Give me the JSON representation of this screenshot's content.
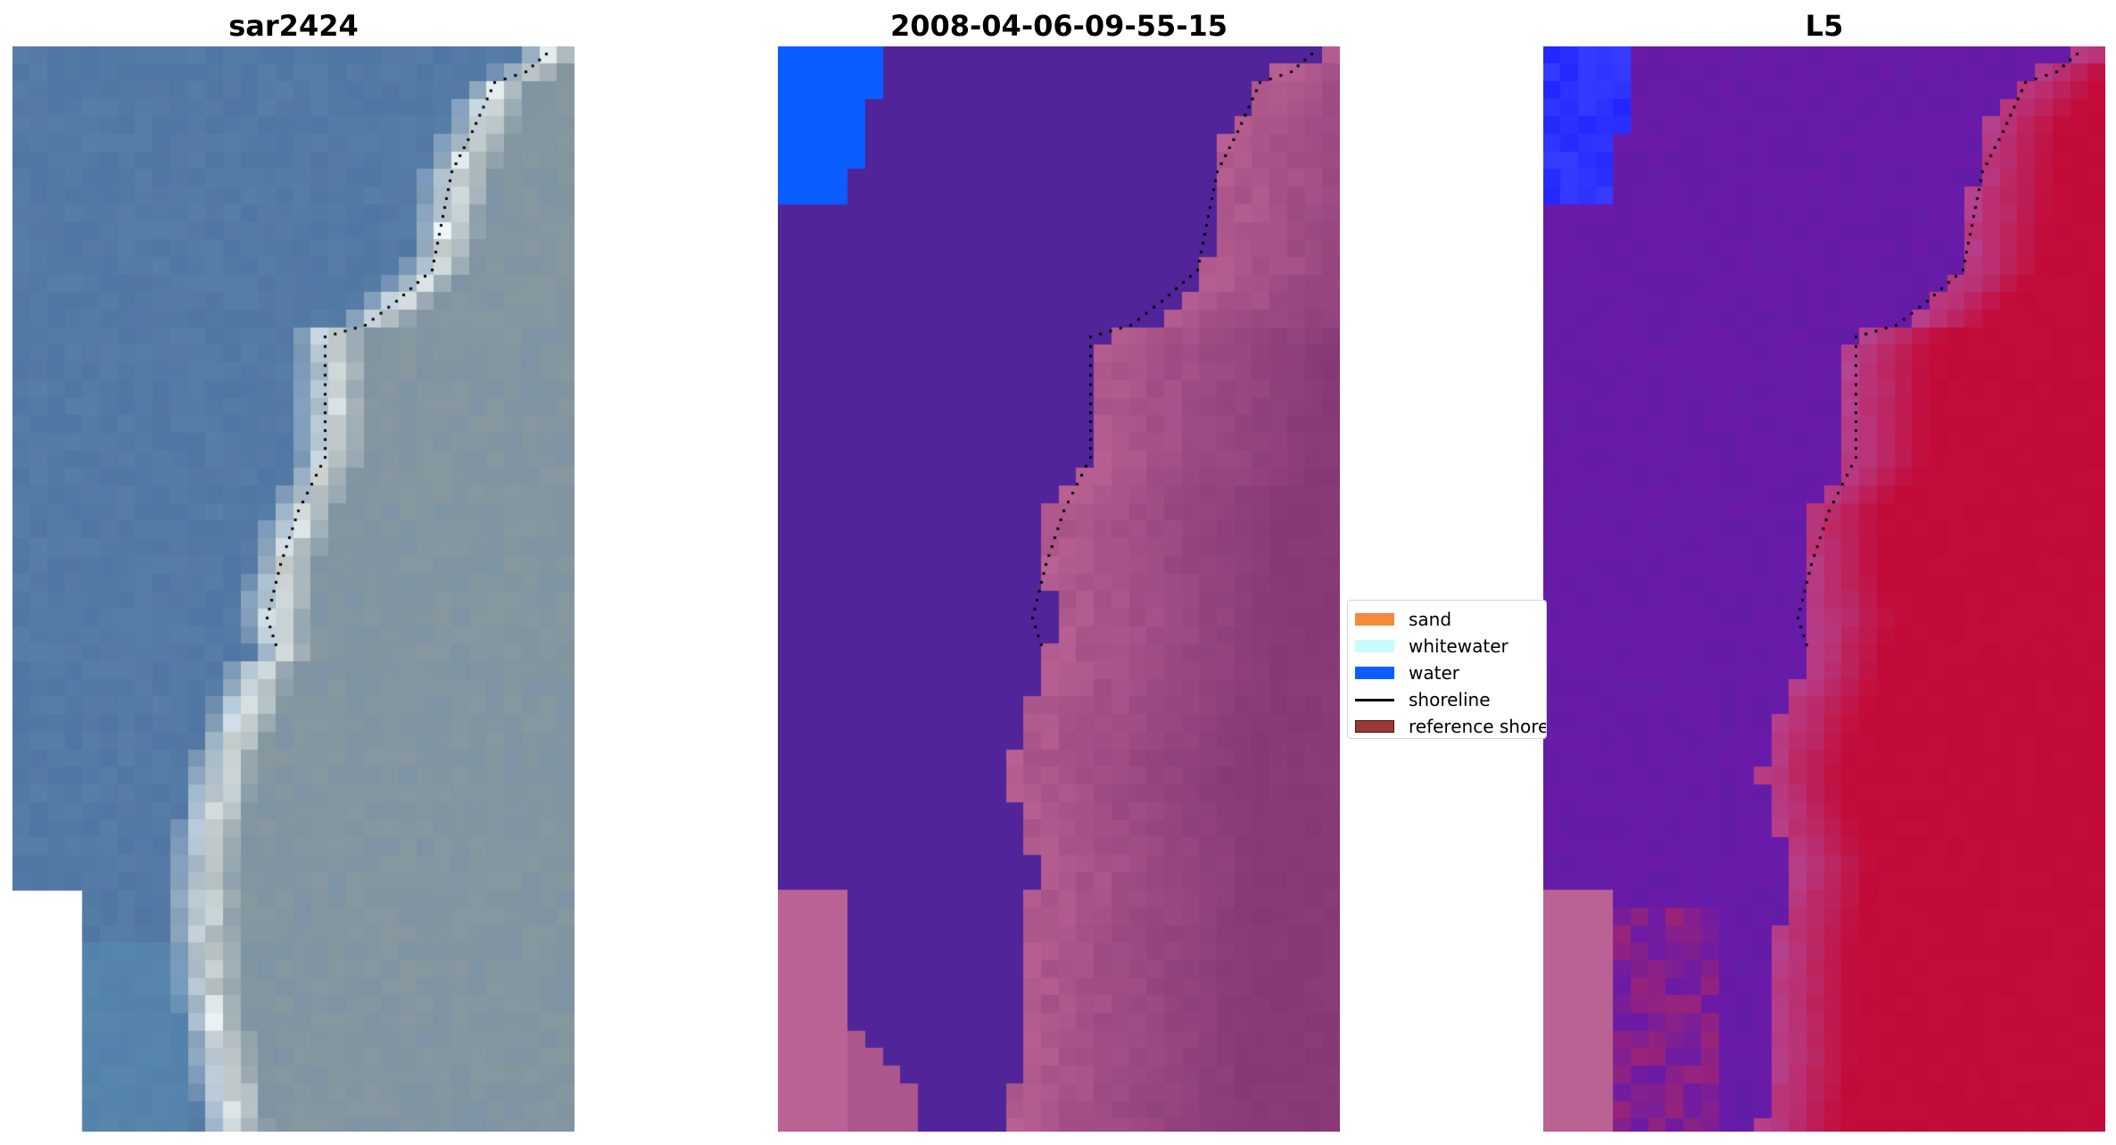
{
  "titles": [
    "sar2424",
    "2008-04-06-09-55-15",
    "L5"
  ],
  "legend": [
    {
      "label": "sand",
      "color": "#f7893a",
      "kind": "patch",
      "icon": "sand-swatch-icon"
    },
    {
      "label": "whitewater",
      "color": "#c8fbfa",
      "kind": "patch",
      "icon": "whitewater-swatch-icon"
    },
    {
      "label": "water",
      "color": "#0a5dff",
      "kind": "patch",
      "icon": "water-swatch-icon"
    },
    {
      "label": "shoreline",
      "color": "#000000",
      "kind": "line",
      "icon": "shoreline-line-icon"
    },
    {
      "label": "reference shoreline buffer",
      "color": "#9a3838",
      "kind": "patch",
      "icon": "reference-swatch-icon"
    }
  ],
  "colors": {
    "rgb_water": "#577ea6",
    "rgb_land": "#7e93a3",
    "rgb_foam": "#e6e6da",
    "class_water": "#52249a",
    "class_deepwater": "#0a5dff",
    "class_land": "#8a3b78",
    "class_land_light": "#bb6294",
    "index_water": "#6a1aa8",
    "index_land": "#c10a38",
    "index_deepwater": "#2226ff"
  }
}
